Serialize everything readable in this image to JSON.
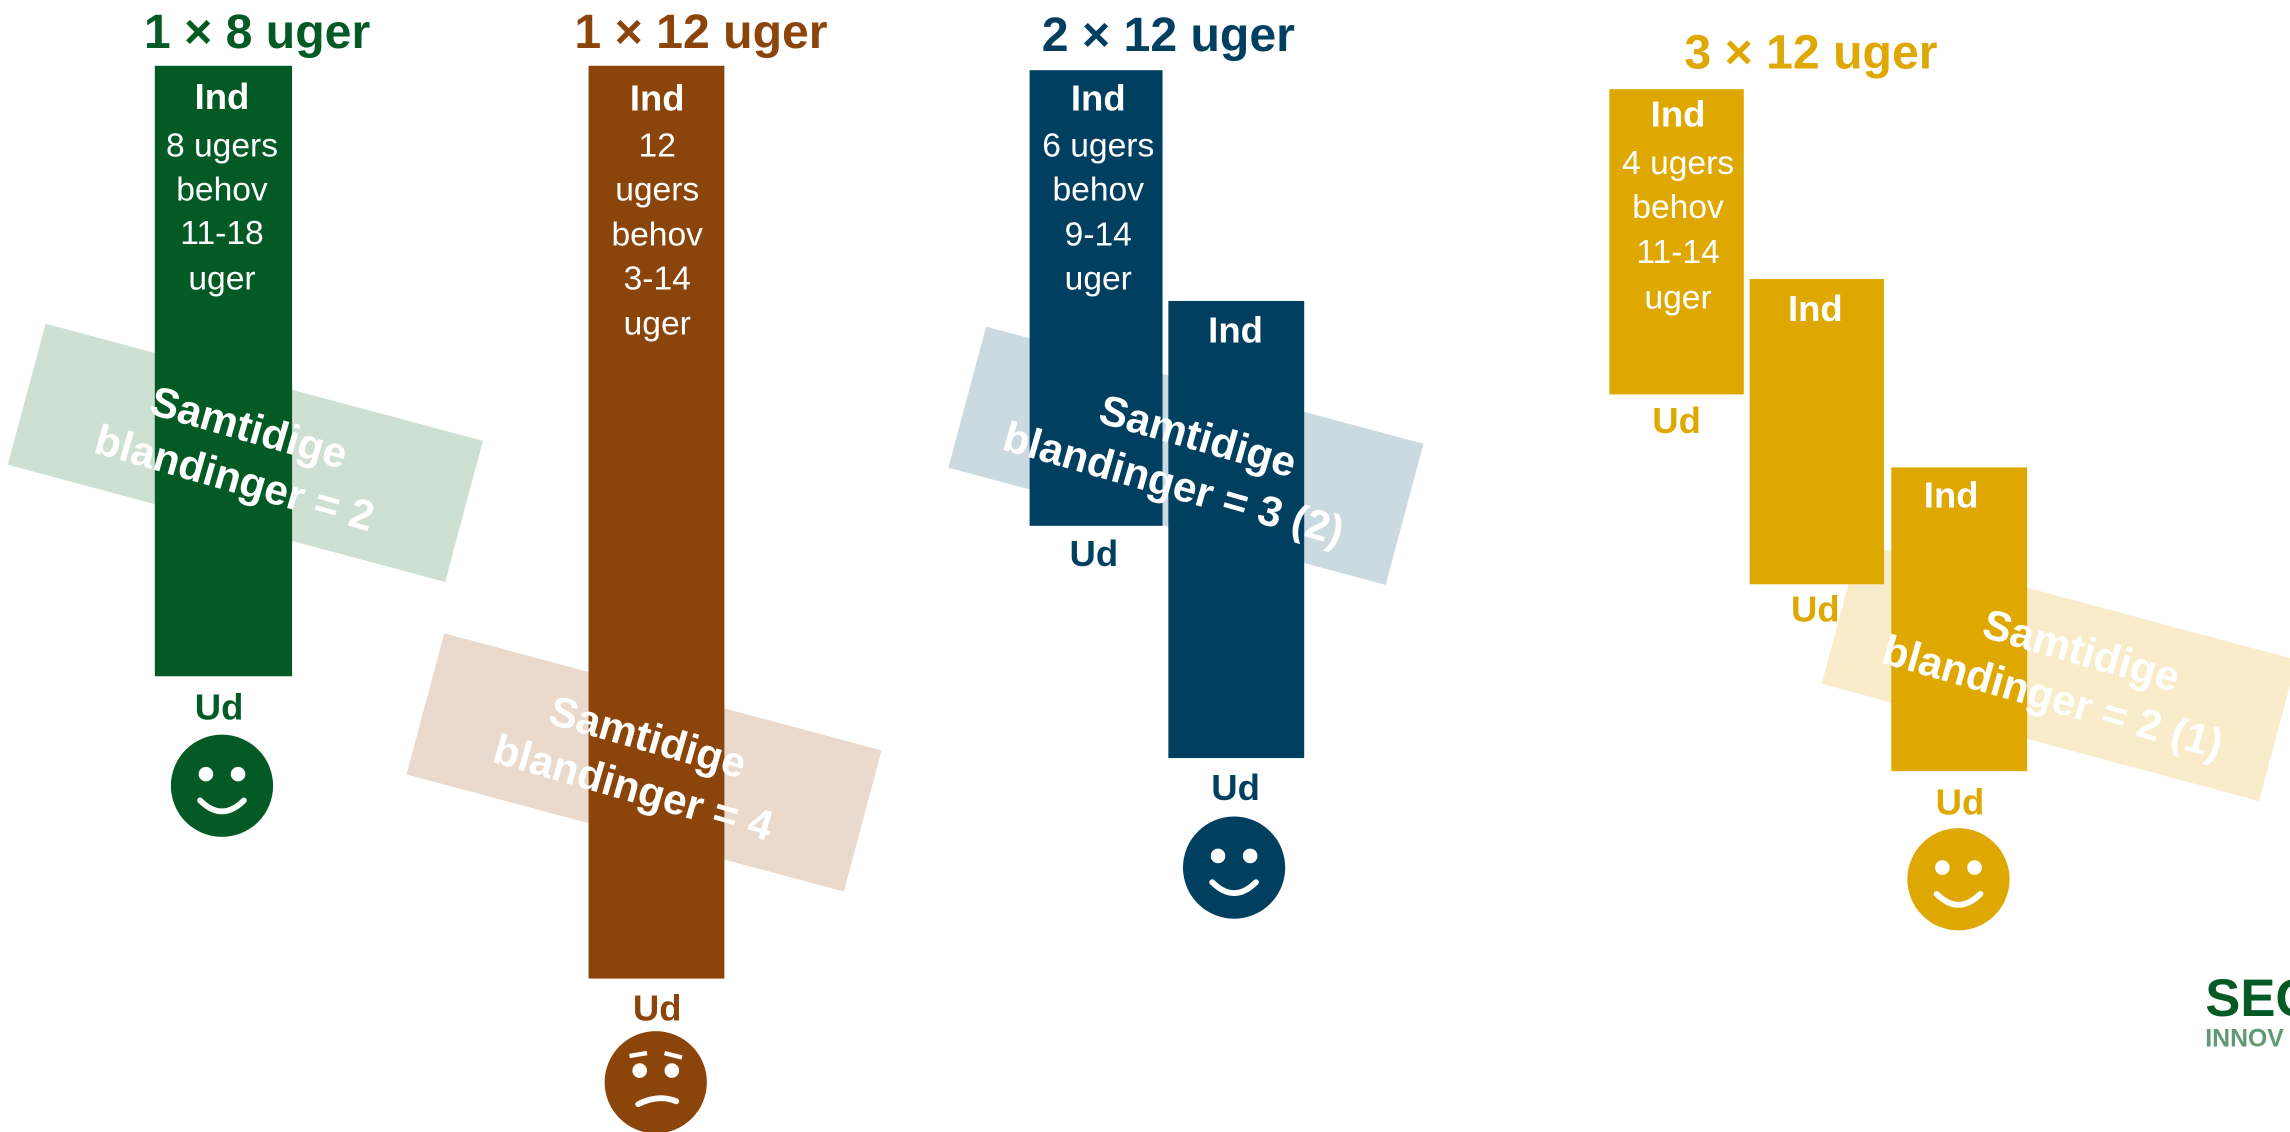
{
  "columns": [
    {
      "title": "1 × 8 uger",
      "bars": [
        {
          "in": "Ind",
          "notes": [
            "8 ugers",
            "behov",
            "11-18",
            "uger"
          ],
          "out": "Ud"
        }
      ],
      "overlay": [
        "Samtidige",
        "blandinger = 2"
      ]
    },
    {
      "title": "1 × 12 uger",
      "bars": [
        {
          "in": "Ind",
          "notes": [
            "12",
            "ugers",
            "behov",
            "3-14",
            "uger"
          ],
          "out": "Ud"
        }
      ],
      "overlay": [
        "Samtidige",
        "blandinger = 4"
      ]
    },
    {
      "title": "2 × 12 uger",
      "bars": [
        {
          "in": "Ind",
          "notes": [
            "6 ugers",
            "behov",
            "9-14",
            "uger"
          ],
          "out": "Ud"
        },
        {
          "in": "Ind",
          "out": "Ud"
        }
      ],
      "overlay": [
        "Samtidige",
        "blandinger = 3 (2)"
      ]
    },
    {
      "title": "3 × 12 uger",
      "bars": [
        {
          "in": "Ind",
          "notes": [
            "4 ugers",
            "behov",
            "11-14",
            "uger"
          ],
          "out": "Ud"
        },
        {
          "in": "Ind",
          "out": "Ud"
        },
        {
          "in": "Ind",
          "out": "Ud"
        }
      ],
      "overlay": [
        "Samtidige",
        "blandinger = 2 (1)"
      ]
    }
  ],
  "logo": {
    "line1": "SEG",
    "line2": "INNOV"
  }
}
